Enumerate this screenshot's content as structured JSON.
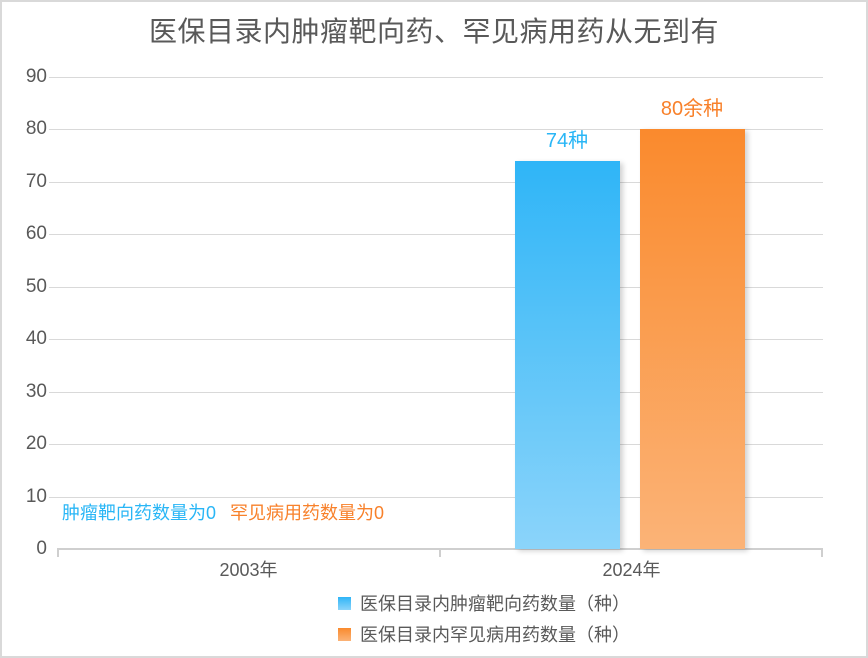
{
  "window": {
    "background": "#FFFFFF",
    "border_color": "#D9D9D9"
  },
  "colors": {
    "title_text": "#595959",
    "axis_text": "#595959",
    "gridline": "#D9D9D9",
    "axis_line": "#CFCFCF",
    "blue_series": "#29B6F6",
    "orange_series": "#F8812B"
  },
  "chart_data": {
    "type": "bar",
    "title": "医保目录内肿瘤靶向药、罕见病用药从无到有",
    "categories": [
      "2003年",
      "2024年"
    ],
    "series": [
      {
        "name": "医保目录内肿瘤靶向药数量（种）",
        "values": [
          0,
          74
        ],
        "data_label": "74种",
        "color_top": "#2FB5F7",
        "color_bottom": "#8BD4FA",
        "label_color": "#29B6F6"
      },
      {
        "name": "医保目录内罕见病用药数量（种）",
        "values": [
          0,
          80
        ],
        "data_label": "80余种",
        "color_top": "#FA8A2D",
        "color_bottom": "#FBB377",
        "label_color": "#F8812B"
      }
    ],
    "ylim": [
      0,
      90
    ],
    "yticks": [
      0,
      10,
      20,
      30,
      40,
      50,
      60,
      70,
      80,
      90
    ],
    "grid": true,
    "legend_position": "bottom",
    "annotations": [
      {
        "text": "肿瘤靶向药数量为0",
        "color": "#29B6F6"
      },
      {
        "text": "罕见病用药数量为0",
        "color": "#F8812B"
      }
    ]
  }
}
